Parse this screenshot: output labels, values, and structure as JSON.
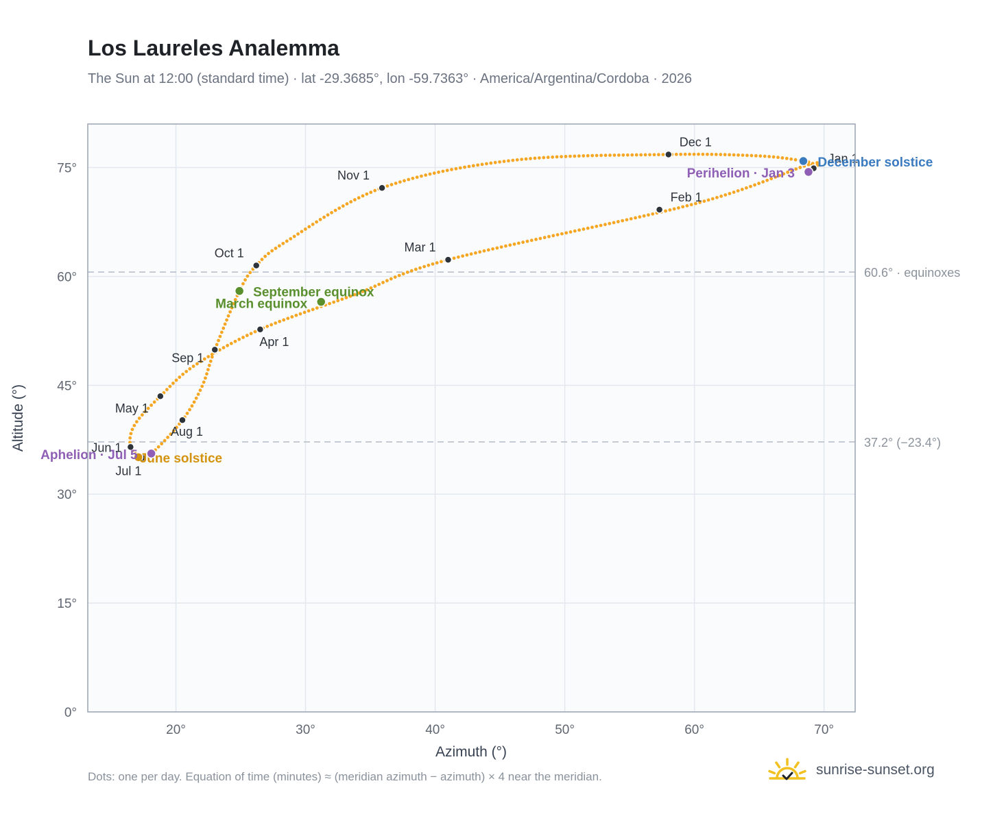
{
  "header": {
    "title": "Los Laureles Analemma",
    "subtitle": "The Sun at 12:00 (standard time) · lat -29.3685°, lon -59.7363° · America/Argentina/Cordoba · 2026"
  },
  "footer": {
    "note": "Dots: one per day. Equation of time (minutes) ≈ (meridian azimuth − azimuth) × 4 near the meridian.",
    "brand": "sunrise-sunset.org"
  },
  "colors": {
    "curve": "#f5a623",
    "month_dot": "#2d333b",
    "equinox": "#5a8f2e",
    "december_solstice": "#3a7bbf",
    "june_solstice": "#d4930f",
    "apsis": "#8e5fb5",
    "plot_bg": "#f9fbfd",
    "grid": "#e3e8ee",
    "frame": "#9aa4b1",
    "refline": "#b8c0ca",
    "tick_text": "#5f6670",
    "logo": "#f2c11f"
  },
  "chart_data": {
    "type": "scatter",
    "xlabel": "Azimuth (°)",
    "ylabel": "Altitude (°)",
    "xlim": [
      13.2,
      72.4
    ],
    "ylim": [
      0,
      81
    ],
    "xticks": [
      20,
      30,
      40,
      50,
      60,
      70
    ],
    "yticks": [
      0,
      15,
      30,
      45,
      60,
      75
    ],
    "tick_suffix": "°",
    "grid": true,
    "points_per_day": 1,
    "year_path": [
      [
        68.8,
        75.4
      ],
      [
        60.0,
        70.0
      ],
      [
        41.0,
        62.3
      ],
      [
        33.8,
        57.5
      ],
      [
        26.5,
        52.7
      ],
      [
        21.5,
        47.8
      ],
      [
        18.8,
        43.5
      ],
      [
        16.8,
        39.5
      ],
      [
        16.5,
        36.5
      ],
      [
        17.4,
        35.0
      ],
      [
        17.2,
        35.4
      ],
      [
        18.1,
        35.6
      ],
      [
        20.5,
        40.2
      ],
      [
        22.0,
        44.8
      ],
      [
        23.0,
        49.9
      ],
      [
        24.9,
        58.0
      ],
      [
        26.2,
        61.5
      ],
      [
        28.5,
        64.8
      ],
      [
        35.9,
        72.2
      ],
      [
        46.0,
        76.0
      ],
      [
        58.0,
        76.8
      ],
      [
        65.0,
        76.6
      ],
      [
        68.4,
        75.9
      ],
      [
        69.0,
        75.5
      ],
      [
        69.2,
        74.9
      ],
      [
        68.8,
        75.4
      ]
    ],
    "months": [
      {
        "label": "Jan 1",
        "x": 69.2,
        "y": 74.9
      },
      {
        "label": "Feb 1",
        "x": 57.3,
        "y": 69.2
      },
      {
        "label": "Mar 1",
        "x": 41.0,
        "y": 62.3
      },
      {
        "label": "Apr 1",
        "x": 26.5,
        "y": 52.7
      },
      {
        "label": "May 1",
        "x": 18.8,
        "y": 43.5
      },
      {
        "label": "Jun 1",
        "x": 16.5,
        "y": 36.5
      },
      {
        "label": "Jul 1",
        "x": 17.4,
        "y": 35.0
      },
      {
        "label": "Aug 1",
        "x": 20.5,
        "y": 40.2
      },
      {
        "label": "Sep 1",
        "x": 23.0,
        "y": 49.9
      },
      {
        "label": "Oct 1",
        "x": 26.2,
        "y": 61.5
      },
      {
        "label": "Nov 1",
        "x": 35.9,
        "y": 72.2
      },
      {
        "label": "Dec 1",
        "x": 58.0,
        "y": 76.8
      }
    ],
    "events": [
      {
        "label": "March equinox",
        "x": 31.2,
        "y": 56.5,
        "kind": "equinox"
      },
      {
        "label": "September equinox",
        "x": 24.9,
        "y": 58.0,
        "kind": "equinox"
      },
      {
        "label": "June solstice",
        "x": 17.1,
        "y": 35.1,
        "kind": "june"
      },
      {
        "label": "December solstice",
        "x": 68.4,
        "y": 75.9,
        "kind": "december"
      },
      {
        "label": "Aphelion · Jul 5",
        "x": 18.1,
        "y": 35.6,
        "kind": "apsis"
      },
      {
        "label": "Perihelion · Jan 3",
        "x": 68.8,
        "y": 74.4,
        "kind": "apsis"
      }
    ],
    "reference_lines": [
      {
        "y": 60.6,
        "label": "60.6° · equinoxes"
      },
      {
        "y": 37.2,
        "label": "37.2° (−23.4°)"
      }
    ]
  }
}
